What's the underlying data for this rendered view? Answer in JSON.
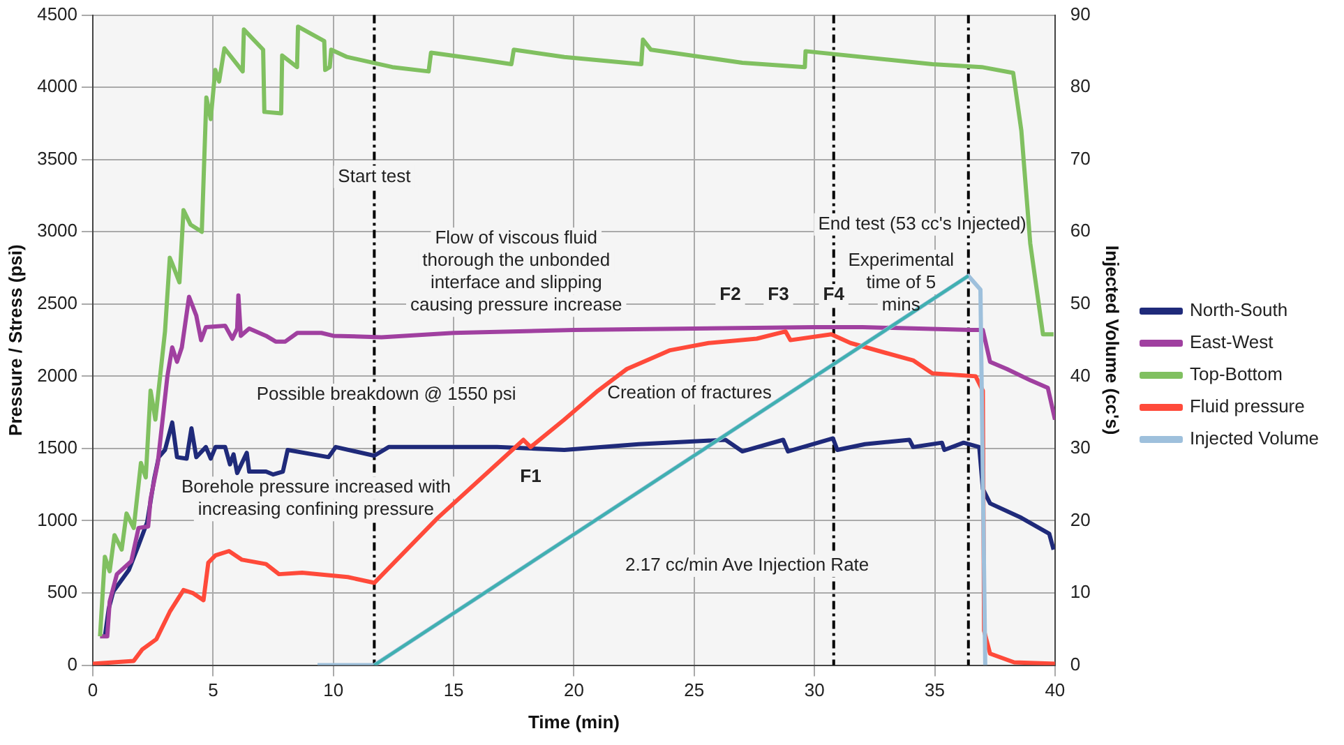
{
  "chart_data": {
    "type": "line",
    "xlabel": "Time (min)",
    "ylabel": "Pressure / Stress (psi)",
    "y2label": "Injected Volume (cc's)",
    "xlim": [
      0,
      40
    ],
    "xticks": [
      0,
      5,
      10,
      15,
      20,
      25,
      30,
      35,
      40
    ],
    "ylim": [
      0,
      4500
    ],
    "yticks": [
      0,
      500,
      1000,
      1500,
      2000,
      2500,
      3000,
      3500,
      4000,
      4500
    ],
    "y2lim": [
      0,
      90
    ],
    "y2ticks": [
      0,
      10,
      20,
      30,
      40,
      50,
      60,
      70,
      80,
      90
    ],
    "grid": true,
    "legend": "right",
    "marker": "none",
    "line_style": "solid",
    "series": [
      {
        "name": "North-South",
        "color": "#1f2a7a",
        "x": [
          0.5,
          0.66,
          0.85,
          1.5,
          1.9,
          2.26,
          2.55,
          2.74,
          3.0,
          3.3,
          3.5,
          3.9,
          4.1,
          4.3,
          4.7,
          4.9,
          5.1,
          5.5,
          5.7,
          5.85,
          6.0,
          6.4,
          6.5,
          7.2,
          7.5,
          7.9,
          8.1,
          9.8,
          10.1,
          11.7,
          12.3,
          13.8,
          16.8,
          19.6,
          22.7,
          26.3,
          27.0,
          28.7,
          28.9,
          30.77,
          30.95,
          32.1,
          33.95,
          34.1,
          35.3,
          35.4,
          36.2,
          36.85,
          37.0,
          37.3,
          38.6,
          39.76,
          39.94
        ],
        "values": [
          200,
          390,
          510,
          660,
          830,
          990,
          1290,
          1440,
          1490,
          1680,
          1440,
          1430,
          1640,
          1440,
          1510,
          1430,
          1510,
          1510,
          1390,
          1460,
          1330,
          1470,
          1340,
          1340,
          1320,
          1340,
          1490,
          1440,
          1510,
          1450,
          1510,
          1510,
          1510,
          1490,
          1530,
          1560,
          1480,
          1560,
          1480,
          1570,
          1490,
          1530,
          1560,
          1510,
          1540,
          1490,
          1540,
          1510,
          1220,
          1120,
          1020,
          910,
          800
        ]
      },
      {
        "name": "East-West",
        "color": "#a040a0",
        "x": [
          0.3,
          0.6,
          0.7,
          1.0,
          1.6,
          1.9,
          2.3,
          2.4,
          2.7,
          2.9,
          3.1,
          3.3,
          3.5,
          3.7,
          4.0,
          4.3,
          4.5,
          4.7,
          5.5,
          5.8,
          6.0,
          6.05,
          6.15,
          6.5,
          7.2,
          7.6,
          8.0,
          8.5,
          9.5,
          10,
          12,
          15,
          20,
          25,
          30,
          32,
          36.5,
          37,
          37.3,
          38,
          39,
          39.7,
          40
        ],
        "values": [
          200,
          200,
          440,
          630,
          720,
          950,
          960,
          1150,
          1400,
          1700,
          2000,
          2200,
          2100,
          2200,
          2550,
          2420,
          2250,
          2340,
          2350,
          2260,
          2330,
          2560,
          2280,
          2330,
          2280,
          2240,
          2240,
          2300,
          2300,
          2280,
          2270,
          2300,
          2320,
          2330,
          2340,
          2340,
          2320,
          2320,
          2100,
          2050,
          1970,
          1920,
          1700
        ]
      },
      {
        "name": "Top-Bottom",
        "color": "#80c060",
        "x": [
          0.3,
          0.5,
          0.7,
          0.9,
          1.2,
          1.4,
          1.7,
          2.0,
          2.2,
          2.4,
          2.6,
          3.0,
          3.2,
          3.3,
          3.6,
          3.77,
          4.06,
          4.53,
          4.72,
          4.9,
          5.09,
          5.25,
          5.47,
          6.23,
          6.28,
          7.08,
          7.13,
          7.83,
          7.87,
          8.49,
          8.53,
          9.62,
          9.66,
          9.85,
          9.91,
          10.57,
          12.45,
          13.96,
          14.06,
          16.2,
          17.4,
          17.5,
          19.6,
          22.8,
          22.87,
          23.2,
          27.0,
          29.6,
          29.63,
          34.9,
          36.95,
          38.26,
          38.6,
          38.97,
          39.5,
          39.94
        ],
        "values": [
          200,
          750,
          650,
          900,
          800,
          1050,
          950,
          1400,
          1300,
          1900,
          1700,
          2310,
          2820,
          2780,
          2650,
          3150,
          3050,
          3000,
          3930,
          3780,
          4120,
          4040,
          4270,
          4110,
          4400,
          4260,
          3830,
          3820,
          4220,
          4140,
          4420,
          4320,
          4120,
          4140,
          4260,
          4210,
          4140,
          4110,
          4240,
          4190,
          4160,
          4260,
          4210,
          4160,
          4330,
          4260,
          4170,
          4140,
          4250,
          4160,
          4140,
          4100,
          3700,
          2920,
          2290,
          2290
        ]
      },
      {
        "name": "Fluid pressure",
        "color": "#ff4a3a",
        "x": [
          0,
          1.7,
          2.06,
          2.64,
          3.2,
          3.77,
          4.15,
          4.6,
          4.8,
          5.1,
          5.66,
          6.2,
          7.2,
          7.74,
          8.7,
          10.6,
          11.7,
          14.34,
          17.9,
          18.2,
          19.6,
          21,
          22.2,
          24,
          25.6,
          27.6,
          28.8,
          29.0,
          30.7,
          31.5,
          33.0,
          34.1,
          34.9,
          36.7,
          37.0,
          37.05,
          37.3,
          38.3,
          40
        ],
        "values": [
          10,
          30,
          110,
          180,
          370,
          520,
          500,
          450,
          710,
          760,
          790,
          730,
          700,
          630,
          640,
          610,
          570,
          1020,
          1560,
          1510,
          1700,
          1900,
          2050,
          2180,
          2230,
          2260,
          2310,
          2250,
          2290,
          2230,
          2160,
          2110,
          2020,
          2000,
          1900,
          240,
          80,
          20,
          10
        ]
      },
      {
        "name": "Injected Volume",
        "color": "#9ec0dc",
        "axis": "y2",
        "x": [
          9.34,
          11.7,
          36.4,
          36.9,
          37.1
        ],
        "values": [
          0,
          0,
          53.9,
          52,
          0
        ]
      },
      {
        "type": "line",
        "color": "#40b0b0",
        "axis": "y2",
        "x": [
          11.7,
          36.4
        ],
        "values": [
          0,
          53.9
        ]
      }
    ],
    "ref_lines": [
      {
        "axis": "x",
        "value": 11.7,
        "line_style": "dashed",
        "color": "#000000"
      },
      {
        "axis": "x",
        "value": 30.8,
        "line_style": "dashed",
        "color": "#000000"
      },
      {
        "axis": "x",
        "value": 36.4,
        "line_style": "dashed",
        "color": "#000000"
      }
    ],
    "annotations": [
      {
        "text": "Start test",
        "x": 11.7,
        "y": 3380
      },
      "Flow of viscous fluid\nthorough the unbonded\ninterface and slipping\ncausing pressure increase",
      "Possible breakdown @ 1550 psi",
      "F1",
      "F2",
      "F3",
      "F4",
      "Borehole pressure increased with\nincreasing confining pressure",
      "Creation of fractures",
      "2.17 cc/min Ave Injection Rate",
      "End test (53 cc's Injected)",
      "Experimental\ntime of 5\nmins"
    ]
  }
}
